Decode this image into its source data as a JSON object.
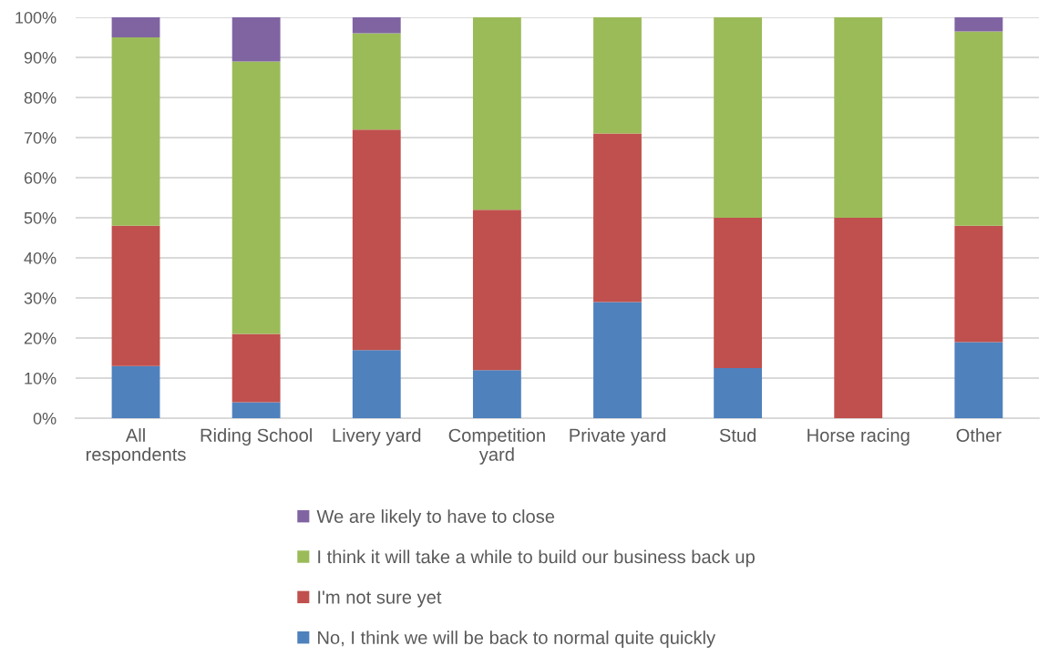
{
  "chart_data": {
    "type": "bar",
    "stacked": true,
    "categories": [
      "All respondents",
      "Riding School",
      "Livery yard",
      "Competition yard",
      "Private yard",
      "Stud",
      "Horse racing",
      "Other"
    ],
    "series": [
      {
        "name": "No, I think we will be back to normal quite quickly",
        "color": "#4f81bd",
        "values": [
          13,
          4,
          17,
          12,
          29,
          12.5,
          0,
          19
        ]
      },
      {
        "name": "I'm not sure yet",
        "color": "#c0504d",
        "values": [
          35,
          17,
          55,
          40,
          42,
          37.5,
          50,
          29
        ]
      },
      {
        "name": "I think it will take a while to build our business back up",
        "color": "#9bbb59",
        "values": [
          47,
          68,
          24,
          48,
          29,
          50,
          50,
          48.5
        ]
      },
      {
        "name": "We are likely to have to close",
        "color": "#8064a2",
        "values": [
          5,
          11,
          4,
          0,
          0,
          0,
          0,
          3.5
        ]
      }
    ],
    "ylim": [
      0,
      100
    ],
    "yticks": [
      {
        "value": 0,
        "label": "0%"
      },
      {
        "value": 10,
        "label": "10%"
      },
      {
        "value": 20,
        "label": "20%"
      },
      {
        "value": 30,
        "label": "30%"
      },
      {
        "value": 40,
        "label": "40%"
      },
      {
        "value": 50,
        "label": "50%"
      },
      {
        "value": 60,
        "label": "60%"
      },
      {
        "value": 70,
        "label": "70%"
      },
      {
        "value": 80,
        "label": "80%"
      },
      {
        "value": 90,
        "label": "90%"
      },
      {
        "value": 100,
        "label": "100%"
      }
    ],
    "grid": "y",
    "legend": "bottom"
  }
}
